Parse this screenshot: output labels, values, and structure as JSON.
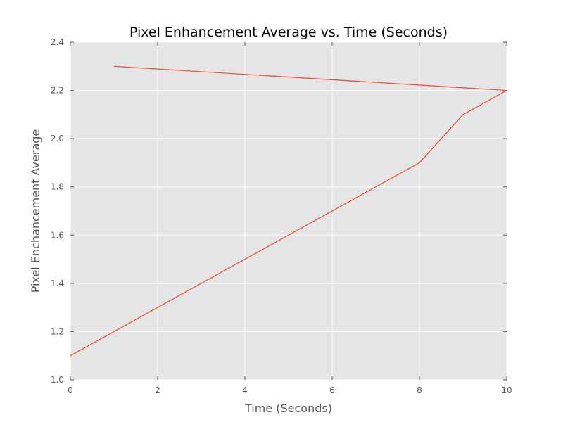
{
  "chart_data": {
    "type": "line",
    "title": "Pixel Enhancement Average vs. Time (Seconds)",
    "xlabel": "Time (Seconds)",
    "ylabel": "Pixel Enchancement Average",
    "xlim": [
      0,
      10
    ],
    "ylim": [
      1.0,
      2.4
    ],
    "xticks": [
      "0",
      "2",
      "4",
      "6",
      "8",
      "10"
    ],
    "yticks": [
      "1.0",
      "1.2",
      "1.4",
      "1.6",
      "1.8",
      "2.0",
      "2.2",
      "2.4"
    ],
    "grid": true,
    "series": [
      {
        "x": [
          1,
          10,
          9,
          8,
          0
        ],
        "y": [
          2.3,
          2.2,
          2.1,
          1.9,
          1.1
        ],
        "color": "#E24A33"
      }
    ]
  },
  "colors": {
    "plot_background": "#E5E5E5",
    "grid": "#FFFFFF",
    "line": "#E24A33",
    "tick_text": "#555555"
  }
}
